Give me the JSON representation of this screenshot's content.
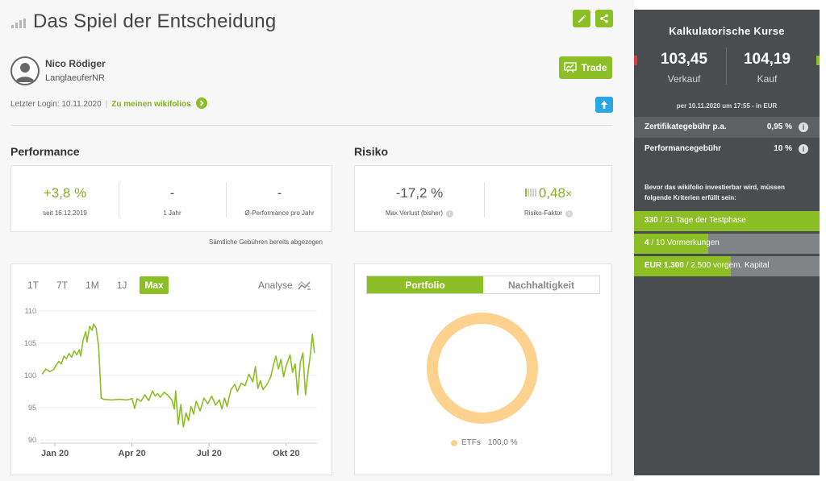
{
  "header": {
    "title": "Das Spiel der Entscheidung"
  },
  "user": {
    "name": "Nico Rödiger",
    "handle": "LanglaeuferNR",
    "last_login_label": "Letzter Login: 10.11.2020",
    "wikifolios_link": "Zu meinen wikifolios"
  },
  "actions": {
    "trade_label": "Trade"
  },
  "performance": {
    "title": "Performance",
    "stats": [
      {
        "value": "+3,8 %",
        "label": "seit 16.12.2019"
      },
      {
        "value": "-",
        "label": "1 Jahr"
      },
      {
        "value": "-",
        "label": "Ø-Performance pro Jahr"
      }
    ],
    "fee_note": "Sämtliche Gebühren bereits abgezogen"
  },
  "risk": {
    "title": "Risiko",
    "stats": [
      {
        "value": "-17,2 %",
        "label": "Max Verlust (bisher)"
      },
      {
        "value": "0,48",
        "suffix": "×",
        "label": "Risiko-Faktor"
      }
    ]
  },
  "chart_controls": {
    "ranges": [
      "1T",
      "7T",
      "1M",
      "1J",
      "Max"
    ],
    "active_range": "Max",
    "analyse_label": "Analyse"
  },
  "chart_data": {
    "type": "line",
    "ylim": [
      89.5,
      111
    ],
    "yticks": [
      "110",
      "105",
      "100",
      "95",
      "90"
    ],
    "ytick_values": [
      110,
      105,
      100,
      95,
      90
    ],
    "xticks": [
      "Jan 20",
      "Apr 20",
      "Jul 20",
      "Okt 20"
    ],
    "xtick_months": [
      0,
      3,
      6,
      9
    ],
    "series": [
      {
        "color": "#8cbf26",
        "points": [
          [
            -0.5,
            100.2
          ],
          [
            -0.35,
            101.0
          ],
          [
            -0.2,
            100.6
          ],
          [
            -0.05,
            100.9
          ],
          [
            0.05,
            101.6
          ],
          [
            0.15,
            102.2
          ],
          [
            0.25,
            101.8
          ],
          [
            0.35,
            103.0
          ],
          [
            0.45,
            102.6
          ],
          [
            0.55,
            103.4
          ],
          [
            0.65,
            102.8
          ],
          [
            0.75,
            103.8
          ],
          [
            0.85,
            103.2
          ],
          [
            0.95,
            104.0
          ],
          [
            1.0,
            103.0
          ],
          [
            1.1,
            105.5
          ],
          [
            1.2,
            106.8
          ],
          [
            1.25,
            105.2
          ],
          [
            1.35,
            107.6
          ],
          [
            1.45,
            107.0
          ],
          [
            1.5,
            108.0
          ],
          [
            1.6,
            107.4
          ],
          [
            1.7,
            104.5
          ],
          [
            1.8,
            96.5
          ],
          [
            1.9,
            96.3
          ],
          [
            2.2,
            96.2
          ],
          [
            2.5,
            96.3
          ],
          [
            2.8,
            96.2
          ],
          [
            3.0,
            96.4
          ],
          [
            3.1,
            94.9
          ],
          [
            3.2,
            96.4
          ],
          [
            3.35,
            96.0
          ],
          [
            3.5,
            97.0
          ],
          [
            3.65,
            96.1
          ],
          [
            3.8,
            97.6
          ],
          [
            3.9,
            96.8
          ],
          [
            4.0,
            97.2
          ],
          [
            4.1,
            96.6
          ],
          [
            4.25,
            97.4
          ],
          [
            4.4,
            96.9
          ],
          [
            4.55,
            96.2
          ],
          [
            4.65,
            94.8
          ],
          [
            4.7,
            97.6
          ],
          [
            4.8,
            92.4
          ],
          [
            4.9,
            95.5
          ],
          [
            5.0,
            92.0
          ],
          [
            5.1,
            94.2
          ],
          [
            5.2,
            93.0
          ],
          [
            5.3,
            95.2
          ],
          [
            5.4,
            94.0
          ],
          [
            5.5,
            96.0
          ],
          [
            5.65,
            94.5
          ],
          [
            5.8,
            96.5
          ],
          [
            5.95,
            95.6
          ],
          [
            6.1,
            96.8
          ],
          [
            6.25,
            95.4
          ],
          [
            6.4,
            96.2
          ],
          [
            6.5,
            94.8
          ],
          [
            6.6,
            96.5
          ],
          [
            6.7,
            95.2
          ],
          [
            6.85,
            97.8
          ],
          [
            7.0,
            98.6
          ],
          [
            7.1,
            97.5
          ],
          [
            7.25,
            98.8
          ],
          [
            7.4,
            98.4
          ],
          [
            7.55,
            100.2
          ],
          [
            7.7,
            99.0
          ],
          [
            7.8,
            101.4
          ],
          [
            7.9,
            98.0
          ],
          [
            8.0,
            99.2
          ],
          [
            8.1,
            97.8
          ],
          [
            8.25,
            98.6
          ],
          [
            8.4,
            99.8
          ],
          [
            8.5,
            101.6
          ],
          [
            8.6,
            103.0
          ],
          [
            8.7,
            101.0
          ],
          [
            8.8,
            102.5
          ],
          [
            8.9,
            99.8
          ],
          [
            9.0,
            101.5
          ],
          [
            9.15,
            103.2
          ],
          [
            9.25,
            100.5
          ],
          [
            9.35,
            101.8
          ],
          [
            9.45,
            97.0
          ],
          [
            9.55,
            102.0
          ],
          [
            9.65,
            103.5
          ],
          [
            9.75,
            97.0
          ],
          [
            9.85,
            100.5
          ],
          [
            9.95,
            103.5
          ],
          [
            10.02,
            106.4
          ],
          [
            10.1,
            103.5
          ]
        ]
      }
    ]
  },
  "portfolio": {
    "tabs": [
      "Portfolio",
      "Nachhaltigkeit"
    ],
    "active_tab": "Portfolio",
    "legend_label": "ETFs",
    "legend_value": "100,0 %",
    "slices": [
      {
        "label": "ETFs",
        "value": 100.0,
        "color": "#fdd28f"
      }
    ]
  },
  "prices": {
    "title": "Kalkulatorische Kurse",
    "sell_value": "103,45",
    "sell_label": "Verkauf",
    "buy_value": "104,19",
    "buy_label": "Kauf",
    "as_of": "per 10.11.2020 um 17:55 - in EUR",
    "fees": [
      {
        "label": "Zertifikategebühr p.a.",
        "value": "0,95 %"
      },
      {
        "label": "Performancegebühr",
        "value": "10 %"
      }
    ],
    "criteria_note": "Bevor das wikifolio investierbar wird, müssen folgende Kriterien erfüllt sein:",
    "criteria": [
      {
        "current": "330",
        "rest": " / 21 Tage der Testphase",
        "progress": 1.0
      },
      {
        "current": "4",
        "rest": " / 10 Vormerkungen",
        "progress": 0.4
      },
      {
        "current": "EUR 1.300",
        "rest": " / 2.500 vorgem. Kapital",
        "progress": 0.52
      }
    ]
  },
  "colors": {
    "accent_green": "#8cbf26",
    "panel_dark": "#4a4d4f",
    "info_blue": "#2aa7e0",
    "donut_orange": "#fdd28f"
  }
}
